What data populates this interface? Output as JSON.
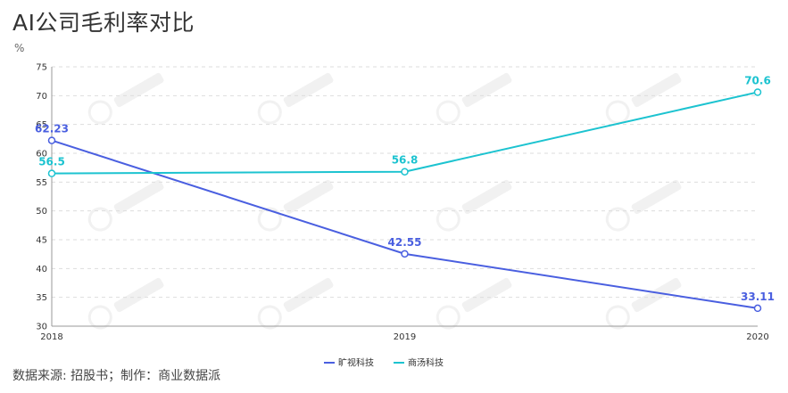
{
  "page": {
    "title": "AI公司毛利率对比",
    "unit": "%",
    "source": "数据来源: 招股书；制作：商业数据派"
  },
  "chart_data": {
    "type": "line",
    "x": [
      "2018",
      "2019",
      "2020"
    ],
    "ylim": [
      30,
      75
    ],
    "yticks": [
      30,
      35,
      40,
      45,
      50,
      55,
      60,
      65,
      70,
      75
    ],
    "grid": true,
    "legend_position": "bottom-center",
    "series": [
      {
        "name": "旷视科技",
        "values": [
          62.23,
          42.55,
          33.11
        ],
        "labels": [
          "62.23",
          "42.55",
          "33.11"
        ],
        "color": "#4a5fe0"
      },
      {
        "name": "商汤科技",
        "values": [
          56.5,
          56.8,
          70.6
        ],
        "labels": [
          "56.5",
          "56.8",
          "70.6"
        ],
        "color": "#1cc3d0"
      }
    ]
  }
}
